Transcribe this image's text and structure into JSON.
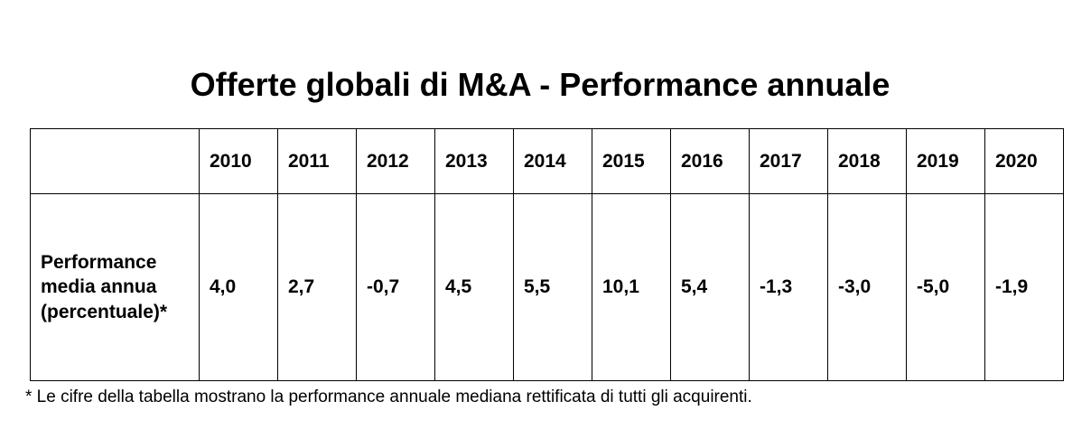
{
  "title": "Offerte globali di M&A - Performance annuale",
  "colors": {
    "background": "#ffffff",
    "text": "#000000",
    "table_border": "#000000"
  },
  "table": {
    "corner_label": "",
    "years": [
      "2010",
      "2011",
      "2012",
      "2013",
      "2014",
      "2015",
      "2016",
      "2017",
      "2018",
      "2019",
      "2020"
    ],
    "row_label": "Performance media annua (percentuale)*",
    "values": [
      "4,0",
      "2,7",
      "-0,7",
      "4,5",
      "5,5",
      "10,1",
      "5,4",
      "-1,3",
      "-3,0",
      "-5,0",
      "-1,9"
    ]
  },
  "footnote": "* Le cifre della tabella mostrano la performance annuale mediana rettificata di tutti gli acquirenti.",
  "chart_data": {
    "type": "table",
    "title": "Offerte globali di M&A - Performance annuale",
    "categories": [
      "2010",
      "2011",
      "2012",
      "2013",
      "2014",
      "2015",
      "2016",
      "2017",
      "2018",
      "2019",
      "2020"
    ],
    "series": [
      {
        "name": "Performance media annua (percentuale)*",
        "values": [
          4.0,
          2.7,
          -0.7,
          4.5,
          5.5,
          10.1,
          5.4,
          -1.3,
          -3.0,
          -5.0,
          -1.9
        ]
      }
    ],
    "value_display_format": "italian decimal comma",
    "footnote": "* Le cifre della tabella mostrano la performance annuale mediana rettificata di tutti gli acquirenti.",
    "layout": {
      "grid": true,
      "legend": "none",
      "orientation": "years as columns"
    }
  }
}
